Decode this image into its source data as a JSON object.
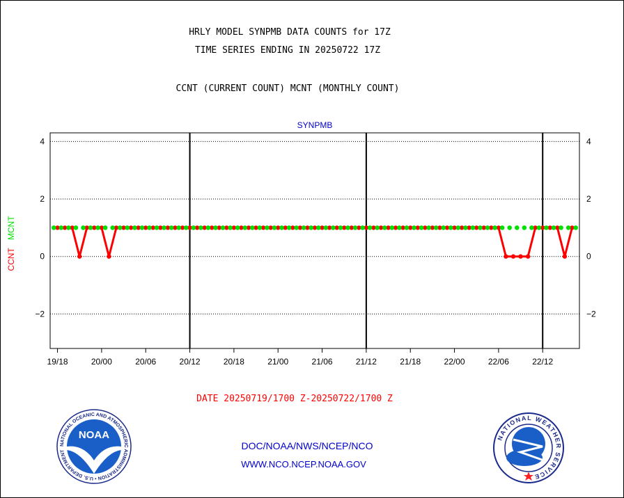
{
  "header": {
    "line1": "HRLY MODEL SYNPMB DATA COUNTS for 17Z",
    "line2": "TIME SERIES ENDING IN 20250722 17Z",
    "line3": "CCNT (CURRENT COUNT) MCNT (MONTHLY COUNT)"
  },
  "footer": {
    "date_range": "DATE 20250719/1700 Z-20250722/1700 Z",
    "org": "DOC/NOAA/NWS/NCEP/NCO",
    "url": "WWW.NCO.NCEP.NOAA.GOV"
  },
  "logos": {
    "noaa_text": "NOAA",
    "noaa_ring": "NATIONAL OCEANIC AND ATMOSPHERIC ADMINISTRATION • U.S. DEPARTMENT OF COMMERCE •",
    "nws_ring": "NATIONAL WEATHER SERVICE"
  },
  "colors": {
    "ccnt": "#ff0000",
    "mcnt": "#00e000",
    "title": "#0000cc",
    "footer_blue": "#0000cc",
    "date_red": "#ff0000"
  },
  "chart_data": {
    "type": "line",
    "title": "SYNPMB",
    "ylabel_parts": [
      {
        "text": "CCNT",
        "color": "#ff0000"
      },
      {
        "text": "MCNT",
        "color": "#00e000"
      }
    ],
    "ylim": [
      -3.2,
      4.3
    ],
    "yticks": [
      4,
      2,
      0,
      -2
    ],
    "x_hours_start": -1,
    "x_hours_end": 71,
    "xtick_labels": [
      "19/18",
      "20/00",
      "20/06",
      "20/12",
      "20/18",
      "21/00",
      "21/06",
      "21/12",
      "21/18",
      "22/00",
      "22/06",
      "22/12"
    ],
    "xtick_hours": [
      0,
      6,
      12,
      18,
      24,
      30,
      36,
      42,
      48,
      54,
      60,
      66
    ],
    "day_boundary_hours": [
      18,
      42,
      66
    ],
    "grid_y": true,
    "series": [
      {
        "name": "CCNT",
        "color": "#ff0000",
        "hours": [
          0,
          1,
          2,
          3,
          4,
          5,
          6,
          7,
          8,
          9,
          10,
          11,
          12,
          13,
          14,
          15,
          16,
          17,
          18,
          19,
          20,
          21,
          22,
          23,
          24,
          25,
          26,
          27,
          28,
          29,
          30,
          31,
          32,
          33,
          34,
          35,
          36,
          37,
          38,
          39,
          40,
          41,
          42,
          43,
          44,
          45,
          46,
          47,
          48,
          49,
          50,
          51,
          52,
          53,
          54,
          55,
          56,
          57,
          58,
          59,
          60,
          61,
          62,
          63,
          64,
          65,
          66,
          67,
          68,
          69,
          70
        ],
        "values": [
          1,
          1,
          1,
          0,
          1,
          1,
          1,
          0,
          1,
          1,
          1,
          1,
          1,
          1,
          1,
          1,
          1,
          1,
          1,
          1,
          1,
          1,
          1,
          1,
          1,
          1,
          1,
          1,
          1,
          1,
          1,
          1,
          1,
          1,
          1,
          1,
          1,
          1,
          1,
          1,
          1,
          1,
          1,
          1,
          1,
          1,
          1,
          1,
          1,
          1,
          1,
          1,
          1,
          1,
          1,
          1,
          1,
          1,
          1,
          1,
          1,
          0,
          0,
          0,
          0,
          1,
          1,
          1,
          1,
          0,
          1
        ]
      },
      {
        "name": "MCNT",
        "color": "#00e000",
        "hours": [
          -0.5,
          0.5,
          1.5,
          2.5,
          3.5,
          4.5,
          5.5,
          6.5,
          7.5,
          8.5,
          9.5,
          10.5,
          11.5,
          12.5,
          13.5,
          14.5,
          15.5,
          16.5,
          17.5,
          18.5,
          19.5,
          20.5,
          21.5,
          22.5,
          23.5,
          24.5,
          25.5,
          26.5,
          27.5,
          28.5,
          29.5,
          30.5,
          31.5,
          32.5,
          33.5,
          34.5,
          35.5,
          36.5,
          37.5,
          38.5,
          39.5,
          40.5,
          41.5,
          42.5,
          43.5,
          44.5,
          45.5,
          46.5,
          47.5,
          48.5,
          49.5,
          50.5,
          51.5,
          52.5,
          53.5,
          54.5,
          55.5,
          56.5,
          57.5,
          58.5,
          59.5,
          60.5,
          61.5,
          62.5,
          63.5,
          64.5,
          65.5,
          66.5,
          67.5,
          68.5,
          69.5,
          70.5
        ],
        "values": [
          1,
          1,
          1,
          1,
          1,
          1,
          1,
          1,
          1,
          1,
          1,
          1,
          1,
          1,
          1,
          1,
          1,
          1,
          1,
          1,
          1,
          1,
          1,
          1,
          1,
          1,
          1,
          1,
          1,
          1,
          1,
          1,
          1,
          1,
          1,
          1,
          1,
          1,
          1,
          1,
          1,
          1,
          1,
          1,
          1,
          1,
          1,
          1,
          1,
          1,
          1,
          1,
          1,
          1,
          1,
          1,
          1,
          1,
          1,
          1,
          1,
          1,
          1,
          1,
          1,
          1,
          1,
          1,
          1,
          1,
          1,
          1
        ]
      }
    ]
  }
}
